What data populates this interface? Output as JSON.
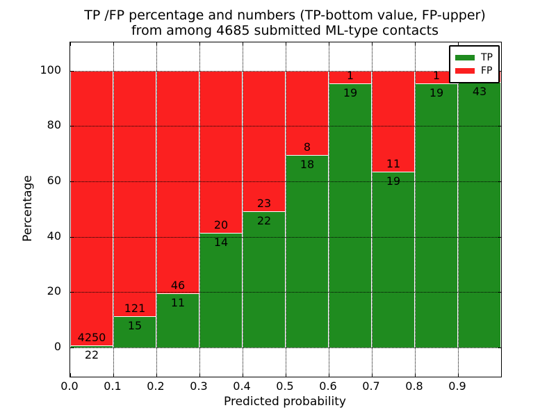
{
  "figure": {
    "title_line1": "TP /FP percentage and numbers (TP-bottom value, FP-upper)",
    "title_line2": "from among 4685 submitted ML-type contacts",
    "xlabel": "Predicted probability",
    "ylabel": "Percentage"
  },
  "legend": {
    "position": "upper-right",
    "items": [
      {
        "label": "TP",
        "color": "#1f8b1f"
      },
      {
        "label": "FP",
        "color": "#fb2020"
      }
    ]
  },
  "chart_data": {
    "type": "bar",
    "stacked": true,
    "normalized_to_percent": true,
    "title": "TP /FP percentage and numbers (TP-bottom value, FP-upper) from among 4685 submitted ML-type contacts",
    "xlabel": "Predicted probability",
    "ylabel": "Percentage",
    "total_contacts": 4685,
    "x_bin_edges": [
      0.0,
      0.1,
      0.2,
      0.3,
      0.4,
      0.5,
      0.6,
      0.7,
      0.8,
      0.9,
      1.0
    ],
    "x_tick_labels": [
      "0.0",
      "0.1",
      "0.2",
      "0.3",
      "0.4",
      "0.5",
      "0.6",
      "0.7",
      "0.8",
      "0.9"
    ],
    "y_ticks": [
      0,
      20,
      40,
      60,
      80,
      100
    ],
    "y_tick_labels": [
      "0",
      "20",
      "40",
      "60",
      "80",
      "100"
    ],
    "xlim": [
      0.0,
      1.0
    ],
    "ylim_displayed": [
      -10.3,
      110.6
    ],
    "grid": "dotted",
    "colors": {
      "tp": "#1f8b1f",
      "fp": "#fb2020"
    },
    "series": [
      {
        "name": "TP",
        "color": "#1f8b1f",
        "counts": [
          22,
          15,
          11,
          14,
          22,
          18,
          19,
          19,
          19,
          43
        ],
        "pct": [
          0.51,
          11.03,
          19.3,
          41.18,
          48.89,
          69.23,
          95.0,
          63.33,
          95.0,
          95.56
        ]
      },
      {
        "name": "FP",
        "color": "#fb2020",
        "counts": [
          4250,
          121,
          46,
          20,
          23,
          8,
          1,
          11,
          1,
          null
        ],
        "pct": [
          99.49,
          88.97,
          80.7,
          58.82,
          51.11,
          30.77,
          5.0,
          36.67,
          5.0,
          4.44
        ]
      }
    ],
    "bar_count_labels": {
      "tp": [
        "22",
        "15",
        "11",
        "14",
        "22",
        "18",
        "19",
        "19",
        "19",
        "43"
      ],
      "fp": [
        "4250",
        "121",
        "46",
        "20",
        "23",
        "8",
        "1",
        "11",
        "1",
        null
      ]
    }
  }
}
